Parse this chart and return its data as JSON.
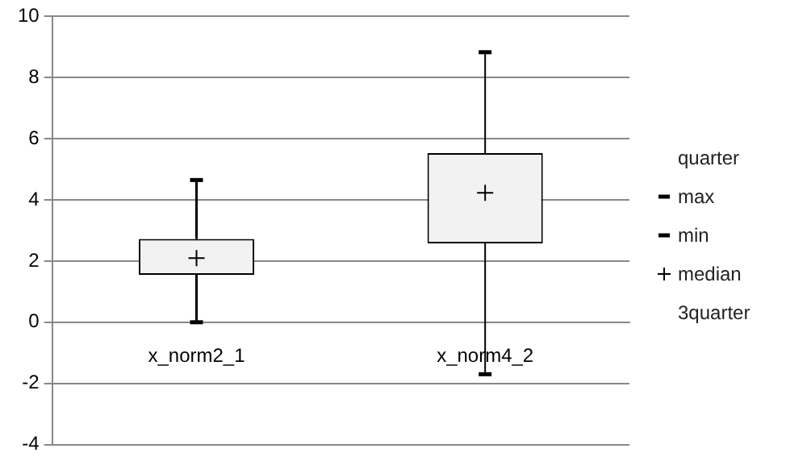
{
  "chart_data": {
    "type": "box",
    "categories": [
      "x_norm2_1",
      "x_norm4_2"
    ],
    "boxes": [
      {
        "low": 0,
        "q1": 1.55,
        "median": 2.1,
        "q3": 2.72,
        "high": 4.65
      },
      {
        "low": -1.7,
        "q1": 2.58,
        "median": 4.23,
        "q3": 5.53,
        "high": 8.83
      }
    ],
    "ylim": [
      -4,
      10
    ],
    "yticks": [
      -4,
      -2,
      0,
      2,
      4,
      6,
      8,
      10
    ],
    "grid": "y",
    "annotations": [
      "quarter",
      "max",
      "min",
      "median",
      "3quarter"
    ]
  }
}
